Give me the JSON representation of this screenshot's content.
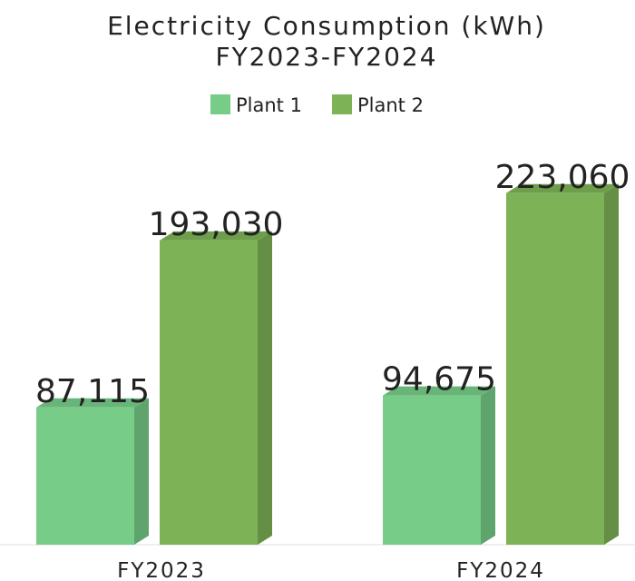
{
  "chart_data": {
    "type": "bar3d",
    "title": "Electricity Consumption (kWh)",
    "subtitle": "FY2023-FY2024",
    "categories": [
      "FY2023",
      "FY2024"
    ],
    "series": [
      {
        "name": "Plant 1",
        "color": "#77cc88",
        "values": [
          87115,
          94675
        ],
        "value_labels": [
          "87,115",
          "94,675"
        ]
      },
      {
        "name": "Plant 2",
        "color": "#7db356",
        "values": [
          193030,
          223060
        ],
        "value_labels": [
          "193,030",
          "223,060"
        ]
      }
    ],
    "ylim": [
      0,
      250000
    ],
    "legend": "top"
  }
}
